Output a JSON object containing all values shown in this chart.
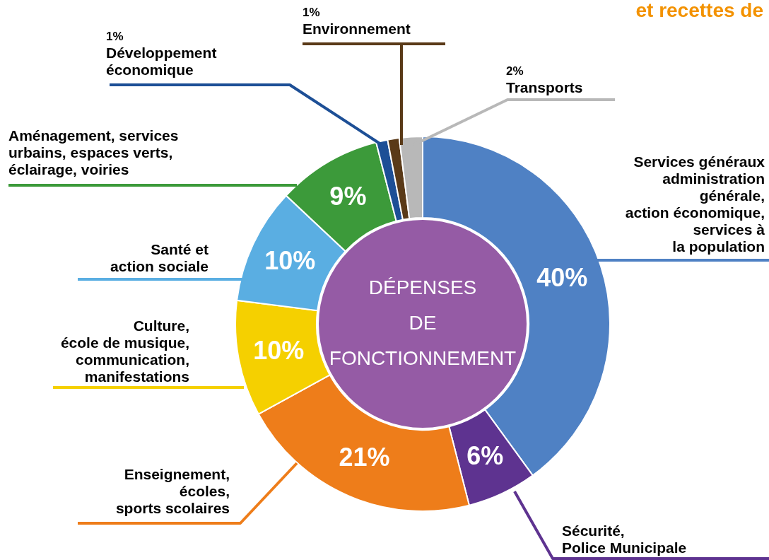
{
  "chart_data": {
    "type": "donut",
    "title": "DÉPENSES\nDE\nFONCTIONNEMENT",
    "annotations": [
      "et recettes de"
    ],
    "categories": [
      "Services généraux\nadministration\ngénérale,\naction économique,\nservices à\nla population",
      "Sécurité,\nPolice Municipale",
      "Enseignement,\nécoles,\nsports scolaires",
      "Culture,\nécole de musique,\ncommunication,\nmanifestations",
      "Santé et\naction sociale",
      "Aménagement, services\nurbains, espaces verts,\néclairage, voiries",
      "Développement\néconomique",
      "Environnement",
      "Transports"
    ],
    "values": [
      40,
      6,
      21,
      10,
      10,
      9,
      1,
      1,
      2
    ],
    "value_labels": [
      "40%",
      "6%",
      "21%",
      "10%",
      "10%",
      "9%",
      "1%",
      "1%",
      "2%"
    ],
    "colors": [
      "#4f81c4",
      "#5e3390",
      "#ee7d1a",
      "#f5d000",
      "#5aaee2",
      "#3c9a3a",
      "#1d4f96",
      "#5a3a18",
      "#b8b8b8"
    ]
  }
}
